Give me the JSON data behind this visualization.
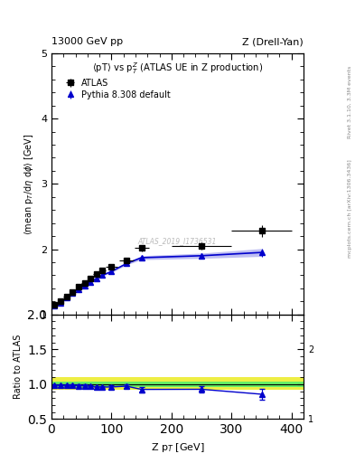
{
  "header_left": "13000 GeV pp",
  "header_right": "Z (Drell-Yan)",
  "right_label": "Rivet 3.1.10, 3.3M events",
  "right_label2": "mcplots.cern.ch [arXiv:1306.3436]",
  "watermark": "ATLAS_2019_I1736531",
  "ylabel_main": "<mean p_T/d\\eta d\\phi> [GeV]",
  "ylabel_ratio": "Ratio to ATLAS",
  "xlabel": "Z p_T [GeV]",
  "ylim_main": [
    1.0,
    5.0
  ],
  "ylim_ratio": [
    0.5,
    2.0
  ],
  "xlim": [
    0,
    420
  ],
  "data_x": [
    5,
    15,
    25,
    35,
    45,
    55,
    65,
    75,
    85,
    100,
    125,
    150,
    250,
    350
  ],
  "data_y": [
    1.15,
    1.2,
    1.28,
    1.35,
    1.42,
    1.48,
    1.55,
    1.62,
    1.67,
    1.73,
    1.83,
    2.02,
    2.05,
    2.28
  ],
  "data_yerr": [
    0.02,
    0.02,
    0.02,
    0.02,
    0.02,
    0.02,
    0.02,
    0.02,
    0.02,
    0.03,
    0.04,
    0.05,
    0.06,
    0.09
  ],
  "data_xerr": [
    5,
    5,
    5,
    5,
    5,
    5,
    5,
    5,
    5,
    10,
    12,
    12,
    50,
    50
  ],
  "mc_x": [
    5,
    15,
    25,
    35,
    45,
    55,
    65,
    75,
    85,
    100,
    125,
    150,
    250,
    350
  ],
  "mc_y": [
    1.13,
    1.18,
    1.26,
    1.33,
    1.39,
    1.44,
    1.5,
    1.55,
    1.6,
    1.66,
    1.78,
    1.87,
    1.9,
    1.95
  ],
  "mc_yerr_up": [
    0.01,
    0.01,
    0.01,
    0.01,
    0.01,
    0.01,
    0.01,
    0.01,
    0.01,
    0.02,
    0.02,
    0.03,
    0.04,
    0.06
  ],
  "mc_yerr_dn": [
    0.01,
    0.01,
    0.01,
    0.01,
    0.01,
    0.01,
    0.01,
    0.01,
    0.01,
    0.02,
    0.02,
    0.03,
    0.04,
    0.06
  ],
  "ratio_x": [
    5,
    15,
    25,
    35,
    45,
    55,
    65,
    75,
    85,
    100,
    125,
    150,
    250,
    350
  ],
  "ratio_y": [
    0.985,
    0.983,
    0.984,
    0.985,
    0.978,
    0.977,
    0.968,
    0.957,
    0.959,
    0.96,
    0.972,
    0.925,
    0.927,
    0.856
  ],
  "ratio_yerr": [
    0.018,
    0.018,
    0.018,
    0.018,
    0.018,
    0.018,
    0.018,
    0.018,
    0.018,
    0.025,
    0.03,
    0.04,
    0.05,
    0.08
  ],
  "ratio_xerr": [
    5,
    5,
    5,
    5,
    5,
    5,
    5,
    5,
    5,
    10,
    12,
    12,
    50,
    50
  ],
  "data_color": "#000000",
  "mc_color": "#0000cc",
  "band_green_color": "#66ee66",
  "band_yellow_color": "#eeee44",
  "legend_data_label": "ATLAS",
  "legend_mc_label": "Pythia 8.308 default"
}
